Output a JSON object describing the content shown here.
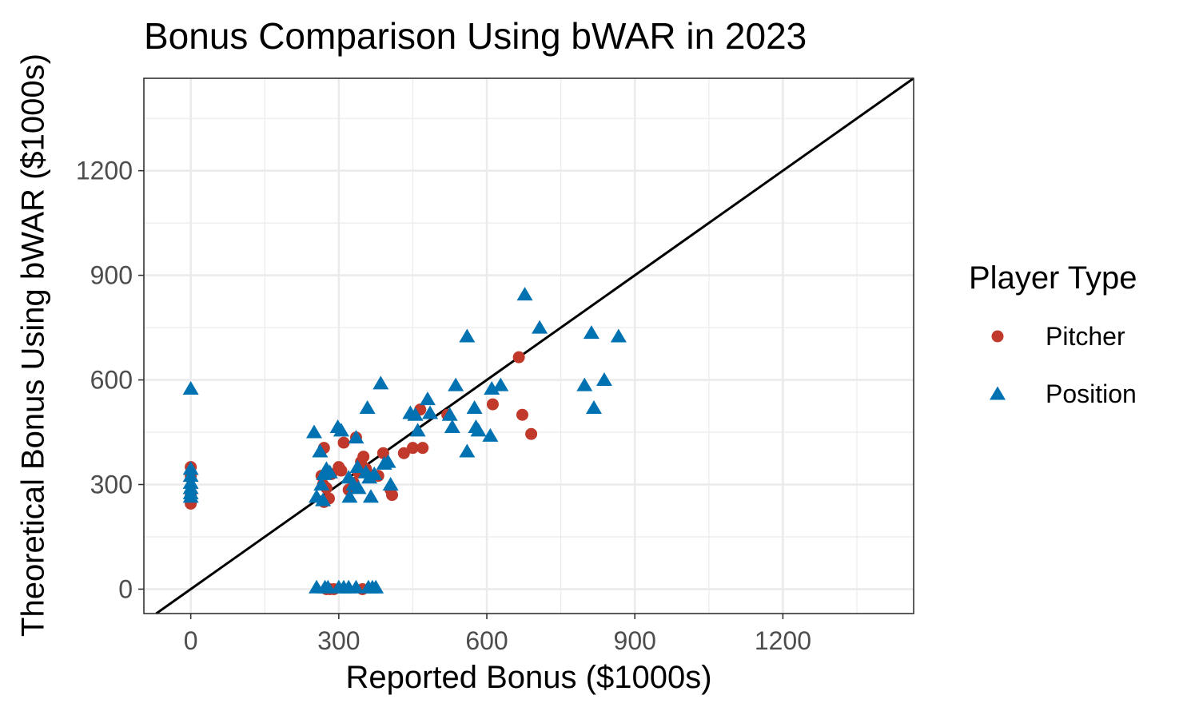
{
  "chart_data": {
    "type": "scatter",
    "title": "Bonus Comparison Using bWAR in 2023",
    "xlabel": "Reported Bonus ($1000s)",
    "ylabel": "Theoretical Bonus Using bWAR ($1000s)",
    "xlim": [
      -95,
      1465
    ],
    "ylim": [
      -70,
      1465
    ],
    "x_ticks": [
      0,
      300,
      600,
      900,
      1200
    ],
    "y_ticks": [
      0,
      300,
      600,
      900,
      1200
    ],
    "grid": true,
    "reference_line": "y = x",
    "legend": {
      "title": "Player Type",
      "placement": "right",
      "entries": [
        {
          "label": "Pitcher",
          "shape": "circle",
          "color": "#c0392b"
        },
        {
          "label": "Position",
          "shape": "triangle",
          "color": "#0072b2"
        }
      ]
    },
    "series": [
      {
        "name": "Pitcher",
        "color": "#c0392b",
        "shape": "circle",
        "points": [
          [
            0,
            350
          ],
          [
            0,
            325
          ],
          [
            0,
            270
          ],
          [
            0,
            255
          ],
          [
            0,
            245
          ],
          [
            270,
            405
          ],
          [
            265,
            325
          ],
          [
            268,
            300
          ],
          [
            275,
            290
          ],
          [
            280,
            260
          ],
          [
            270,
            250
          ],
          [
            285,
            330
          ],
          [
            275,
            0
          ],
          [
            282,
            0
          ],
          [
            290,
            0
          ],
          [
            300,
            350
          ],
          [
            305,
            340
          ],
          [
            310,
            420
          ],
          [
            320,
            285
          ],
          [
            330,
            305
          ],
          [
            335,
            435
          ],
          [
            340,
            335
          ],
          [
            345,
            365
          ],
          [
            350,
            380
          ],
          [
            355,
            345
          ],
          [
            360,
            330
          ],
          [
            348,
            0
          ],
          [
            380,
            325
          ],
          [
            390,
            390
          ],
          [
            405,
            285
          ],
          [
            408,
            270
          ],
          [
            432,
            390
          ],
          [
            450,
            405
          ],
          [
            465,
            515
          ],
          [
            470,
            405
          ],
          [
            520,
            500
          ],
          [
            612,
            530
          ],
          [
            665,
            665
          ],
          [
            672,
            500
          ],
          [
            690,
            445
          ]
        ]
      },
      {
        "name": "Position",
        "color": "#0072b2",
        "shape": "triangle",
        "points": [
          [
            0,
            575
          ],
          [
            0,
            345
          ],
          [
            0,
            325
          ],
          [
            0,
            305
          ],
          [
            0,
            290
          ],
          [
            0,
            275
          ],
          [
            0,
            265
          ],
          [
            250,
            450
          ],
          [
            255,
            265
          ],
          [
            262,
            395
          ],
          [
            265,
            300
          ],
          [
            268,
            255
          ],
          [
            270,
            330
          ],
          [
            275,
            345
          ],
          [
            282,
            335
          ],
          [
            255,
            5
          ],
          [
            272,
            5
          ],
          [
            278,
            5
          ],
          [
            300,
            5
          ],
          [
            310,
            5
          ],
          [
            320,
            5
          ],
          [
            335,
            5
          ],
          [
            360,
            5
          ],
          [
            368,
            5
          ],
          [
            375,
            5
          ],
          [
            298,
            465
          ],
          [
            305,
            455
          ],
          [
            320,
            320
          ],
          [
            322,
            265
          ],
          [
            330,
            300
          ],
          [
            335,
            435
          ],
          [
            338,
            350
          ],
          [
            340,
            290
          ],
          [
            355,
            335
          ],
          [
            358,
            520
          ],
          [
            362,
            320
          ],
          [
            365,
            265
          ],
          [
            372,
            330
          ],
          [
            385,
            590
          ],
          [
            392,
            360
          ],
          [
            400,
            365
          ],
          [
            405,
            300
          ],
          [
            445,
            505
          ],
          [
            455,
            500
          ],
          [
            460,
            455
          ],
          [
            480,
            545
          ],
          [
            485,
            505
          ],
          [
            525,
            500
          ],
          [
            530,
            465
          ],
          [
            537,
            585
          ],
          [
            560,
            395
          ],
          [
            560,
            725
          ],
          [
            575,
            520
          ],
          [
            578,
            465
          ],
          [
            583,
            455
          ],
          [
            607,
            440
          ],
          [
            610,
            575
          ],
          [
            628,
            585
          ],
          [
            677,
            845
          ],
          [
            707,
            750
          ],
          [
            798,
            585
          ],
          [
            812,
            735
          ],
          [
            817,
            520
          ],
          [
            838,
            600
          ],
          [
            867,
            725
          ]
        ]
      }
    ]
  }
}
